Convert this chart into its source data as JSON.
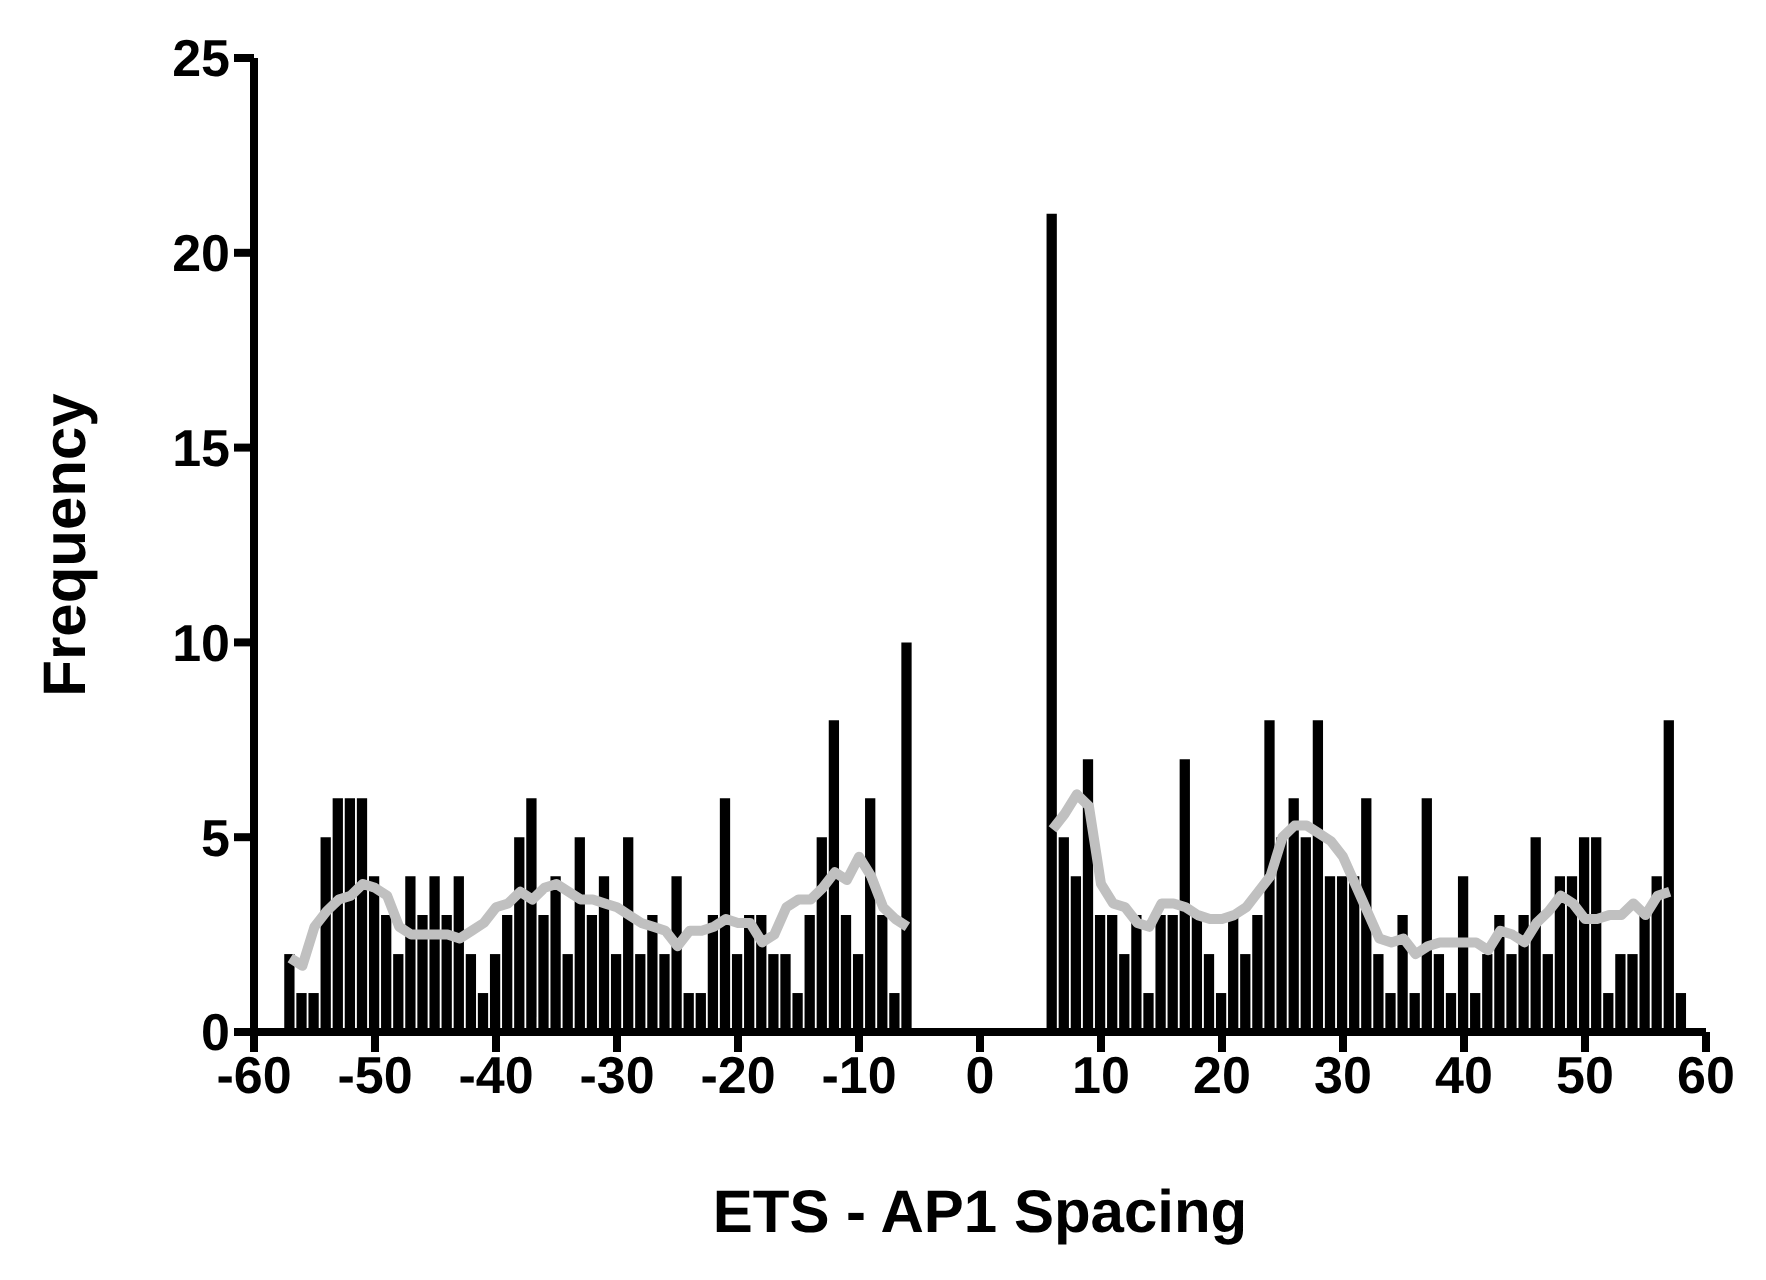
{
  "chart_data": {
    "type": "bar",
    "xlabel": "ETS - AP1 Spacing",
    "ylabel": "Frequency",
    "x": [
      -57,
      -56,
      -55,
      -54,
      -53,
      -52,
      -51,
      -50,
      -49,
      -48,
      -47,
      -46,
      -45,
      -44,
      -43,
      -42,
      -41,
      -40,
      -39,
      -38,
      -37,
      -36,
      -35,
      -34,
      -33,
      -32,
      -31,
      -30,
      -29,
      -28,
      -27,
      -26,
      -25,
      -24,
      -23,
      -22,
      -21,
      -20,
      -19,
      -18,
      -17,
      -16,
      -15,
      -14,
      -13,
      -12,
      -11,
      -10,
      -9,
      -8,
      -7,
      -6,
      -5,
      -4,
      -3,
      -2,
      -1,
      0,
      1,
      2,
      3,
      4,
      5,
      6,
      7,
      8,
      9,
      10,
      11,
      12,
      13,
      14,
      15,
      16,
      17,
      18,
      19,
      20,
      21,
      22,
      23,
      24,
      25,
      26,
      27,
      28,
      29,
      30,
      31,
      32,
      33,
      34,
      35,
      36,
      37,
      38,
      39,
      40,
      41,
      42,
      43,
      44,
      45,
      46,
      47,
      48,
      49,
      50,
      51,
      52,
      53,
      54,
      55,
      56,
      57,
      58
    ],
    "series": [
      {
        "color": "#000000",
        "values": [
          2,
          1,
          1,
          5,
          6,
          6,
          6,
          4,
          3,
          2,
          4,
          3,
          4,
          3,
          4,
          2,
          1,
          2,
          3,
          5,
          6,
          3,
          4,
          2,
          5,
          3,
          4,
          2,
          5,
          2,
          3,
          2,
          4,
          1,
          1,
          3,
          6,
          2,
          3,
          3,
          2,
          2,
          1,
          3,
          5,
          8,
          3,
          2,
          6,
          3,
          1,
          10,
          0,
          0,
          0,
          0,
          0,
          0,
          0,
          0,
          0,
          0,
          0,
          21,
          5,
          4,
          7,
          3,
          3,
          2,
          3,
          1,
          3,
          3,
          7,
          3,
          2,
          1,
          3,
          2,
          3,
          8,
          5,
          6,
          5,
          8,
          4,
          4,
          4,
          6,
          2,
          1,
          3,
          1,
          6,
          2,
          1,
          4,
          1,
          2,
          3,
          2,
          3,
          5,
          2,
          4,
          4,
          5,
          5,
          1,
          2,
          2,
          3,
          4,
          8,
          1
        ]
      },
      {
        "type": "line",
        "color": "#c0c0c0",
        "values": [
          1.9,
          1.7,
          2.7,
          3.1,
          3.4,
          3.5,
          3.8,
          3.7,
          3.5,
          2.7,
          2.5,
          2.5,
          2.5,
          2.5,
          2.4,
          2.6,
          2.8,
          3.2,
          3.3,
          3.6,
          3.4,
          3.7,
          3.8,
          3.6,
          3.4,
          3.4,
          3.3,
          3.2,
          3.0,
          2.8,
          2.7,
          2.6,
          2.2,
          2.6,
          2.6,
          2.7,
          2.9,
          2.8,
          2.8,
          2.3,
          2.5,
          3.2,
          3.4,
          3.4,
          3.7,
          4.1,
          3.9,
          4.5,
          4.0,
          3.2,
          2.9,
          2.7,
          null,
          null,
          null,
          null,
          null,
          null,
          null,
          null,
          null,
          null,
          null,
          5.2,
          5.6,
          6.1,
          5.8,
          3.8,
          3.3,
          3.2,
          2.8,
          2.7,
          3.3,
          3.3,
          3.2,
          3.0,
          2.9,
          2.9,
          3.0,
          3.2,
          3.6,
          4.0,
          5.0,
          5.3,
          5.3,
          5.1,
          4.9,
          4.5,
          3.8,
          3.1,
          2.4,
          2.3,
          2.4,
          2.0,
          2.2,
          2.3,
          2.3,
          2.3,
          2.3,
          2.1,
          2.6,
          2.5,
          2.3,
          2.8,
          3.1,
          3.5,
          3.3,
          2.9,
          2.9,
          3.0,
          3.0,
          3.3,
          3.0,
          3.5,
          3.6,
          null
        ]
      }
    ],
    "xlim": [
      -60,
      60
    ],
    "xticks": [
      -60,
      -50,
      -40,
      -30,
      -20,
      -10,
      0,
      10,
      20,
      30,
      40,
      50,
      60
    ],
    "ylim": [
      0,
      25
    ],
    "yticks": [
      0,
      5,
      10,
      15,
      20,
      25
    ],
    "grid": false,
    "legend": false,
    "marker": "none"
  }
}
